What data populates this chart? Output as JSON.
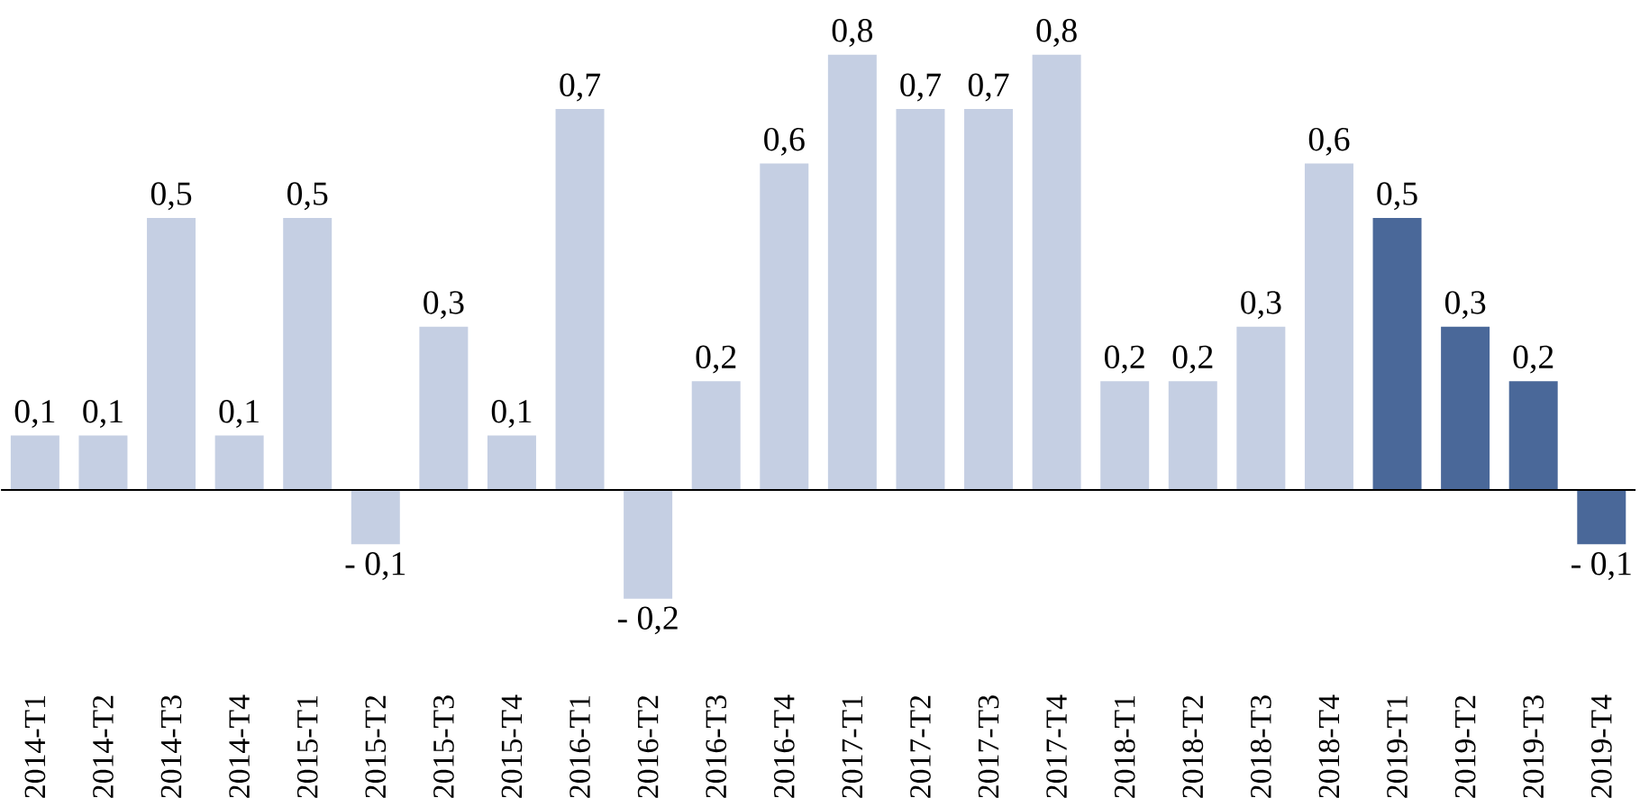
{
  "chart_data": {
    "type": "bar",
    "categories": [
      "2014-T1",
      "2014-T2",
      "2014-T3",
      "2014-T4",
      "2015-T1",
      "2015-T2",
      "2015-T3",
      "2015-T4",
      "2016-T1",
      "2016-T2",
      "2016-T3",
      "2016-T4",
      "2017-T1",
      "2017-T2",
      "2017-T3",
      "2017-T4",
      "2018-T1",
      "2018-T2",
      "2018-T3",
      "2018-T4",
      "2019-T1",
      "2019-T2",
      "2019-T3",
      "2019-T4"
    ],
    "values": [
      0.1,
      0.1,
      0.5,
      0.1,
      0.5,
      -0.1,
      0.3,
      0.1,
      0.7,
      -0.2,
      0.2,
      0.6,
      0.8,
      0.7,
      0.7,
      0.8,
      0.2,
      0.2,
      0.3,
      0.6,
      0.5,
      0.3,
      0.2,
      -0.1
    ],
    "value_labels": [
      "0,1",
      "0,1",
      "0,5",
      "0,1",
      "0,5",
      "- 0,1",
      "0,3",
      "0,1",
      "0,7",
      "- 0,2",
      "0,2",
      "0,6",
      "0,8",
      "0,7",
      "0,7",
      "0,8",
      "0,2",
      "0,2",
      "0,3",
      "0,6",
      "0,5",
      "0,3",
      "0,2",
      "- 0,1"
    ],
    "colors": [
      "#c5cfe3",
      "#c5cfe3",
      "#c5cfe3",
      "#c5cfe3",
      "#c5cfe3",
      "#c5cfe3",
      "#c5cfe3",
      "#c5cfe3",
      "#c5cfe3",
      "#c5cfe3",
      "#c5cfe3",
      "#c5cfe3",
      "#c5cfe3",
      "#c5cfe3",
      "#c5cfe3",
      "#c5cfe3",
      "#c5cfe3",
      "#c5cfe3",
      "#c5cfe3",
      "#c5cfe3",
      "#4a6899",
      "#4a6899",
      "#4a6899",
      "#4a6899"
    ]
  }
}
